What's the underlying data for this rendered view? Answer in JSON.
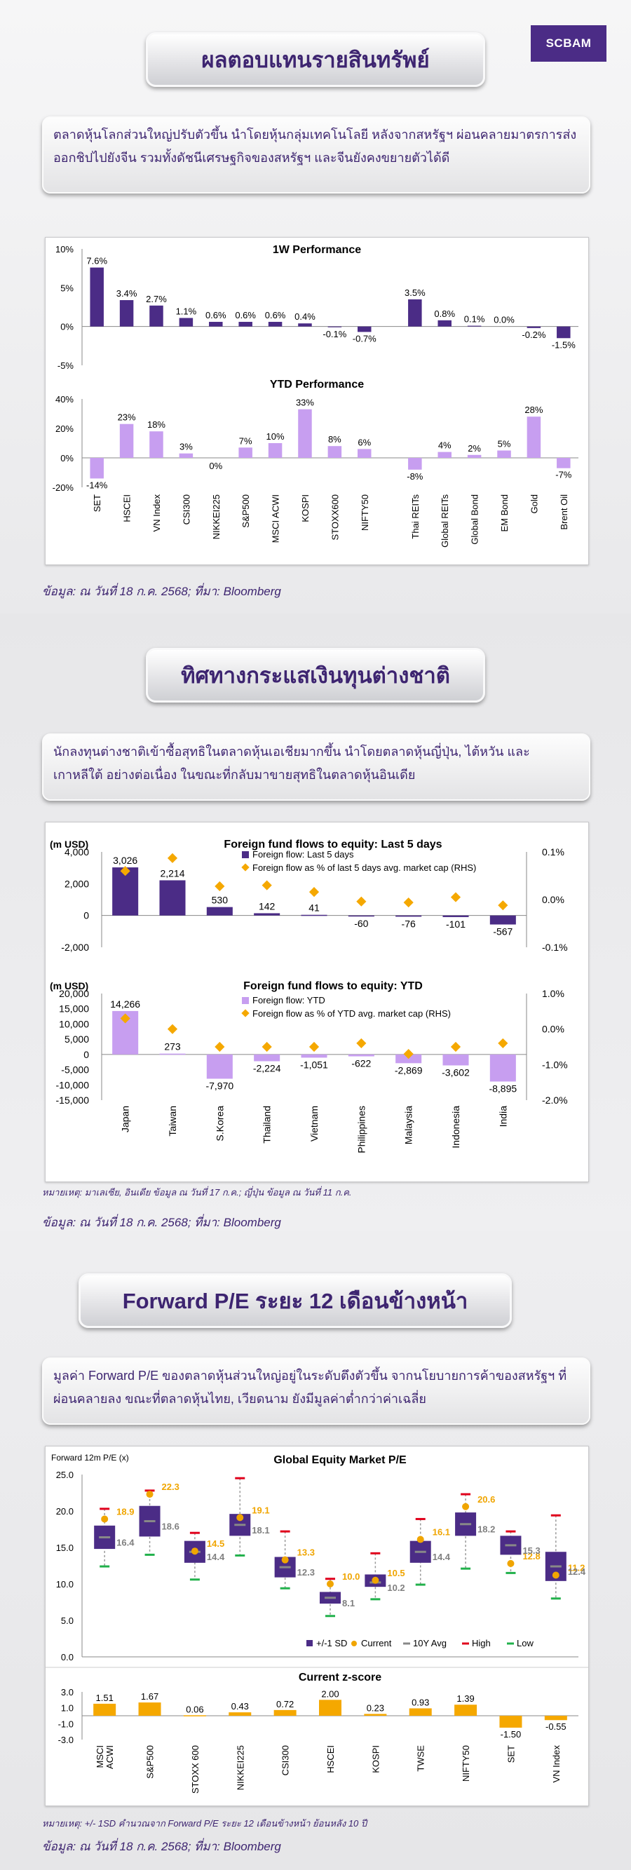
{
  "brand": {
    "logo_text": "SCBAM"
  },
  "section1": {
    "title": "ผลตอบแทนรายสินทรัพย์",
    "description": "ตลาดหุ้นโลกส่วนใหญ่ปรับตัวขึ้น นำโดยหุ้นกลุ่มเทคโนโลยี หลังจากสหรัฐฯ ผ่อนคลายมาตรการส่งออกชิปไปยังจีน รวมทั้งดัชนีเศรษฐกิจของสหรัฐฯ และจีนยังคงขยายตัวได้ดี",
    "source": "ข้อมูล: ณ วันที่ 18 ก.ค. 2568; ที่มา: Bloomberg"
  },
  "section2": {
    "title": "ทิศทางกระแสเงินทุนต่างชาติ",
    "description": "นักลงทุนต่างชาติเข้าซื้อสุทธิในตลาดหุ้นเอเชียมากขึ้น นำโดยตลาดหุ้นญี่ปุ่น, ไต้หวัน และเกาหลีใต้ อย่างต่อเนื่อง ในขณะที่กลับมาขายสุทธิในตลาดหุ้นอินเดีย",
    "footnote": "หมายเหตุ: มาเลเซีย, อินเดีย ข้อมูล ณ วันที่ 17 ก.ค.; ญี่ปุ่น ข้อมูล ณ วันที่ 11 ก.ค.",
    "source": "ข้อมูล: ณ วันที่ 18 ก.ค. 2568; ที่มา: Bloomberg"
  },
  "section3": {
    "title": "Forward P/E ระยะ 12 เดือนข้างหน้า",
    "description": "มูลค่า Forward P/E ของตลาดหุ้นส่วนใหญ่อยู่ในระดับตึงตัวขึ้น จากนโยบายการค้าของสหรัฐฯ ที่ผ่อนคลายลง ขณะที่ตลาดหุ้นไทย, เวียดนาม ยังมีมูลค่าต่ำกว่าค่าเฉลี่ย",
    "footnote": "หมายเหตุ: +/- 1SD คำนวณจาก Forward P/E ระยะ 12 เดือนข้างหน้า ย้อนหลัง 10 ปี",
    "source": "ข้อมูล: ณ วันที่ 18 ก.ค. 2568; ที่มา: Bloomberg"
  },
  "colors": {
    "purple_dark": "#4b2c86",
    "purple_light": "#c79ef0",
    "orange": "#f5a800",
    "gold": "#f0a500",
    "red": "#e0001b",
    "green": "#21b14b",
    "gray": "#888888"
  },
  "chart_data": [
    {
      "type": "bar",
      "title": "1W Performance",
      "categories": [
        "SET",
        "HSCEI",
        "VN Index",
        "CSI300",
        "NIKKEI225",
        "S&P500",
        "MSCI ACWI",
        "KOSPI",
        "STOXX600",
        "NIFTY50",
        "Thai REITs",
        "Global REITs",
        "Global Bond",
        "EM Bond",
        "Gold",
        "Brent Oil"
      ],
      "values": [
        7.6,
        3.4,
        2.7,
        1.1,
        0.6,
        0.6,
        0.6,
        0.4,
        -0.1,
        -0.7,
        3.5,
        0.8,
        0.1,
        0.0,
        -0.2,
        -1.5
      ],
      "labels": [
        "7.6%",
        "3.4%",
        "2.7%",
        "1.1%",
        "0.6%",
        "0.6%",
        "0.6%",
        "0.4%",
        "-0.1%",
        "-0.7%",
        "3.5%",
        "0.8%",
        "0.1%",
        "0.0%",
        "-0.2%",
        "-1.5%"
      ],
      "ylim": [
        -5,
        10
      ],
      "yticks": [
        "-5%",
        "0%",
        "5%",
        "10%"
      ],
      "bar_gaps_after": [
        9
      ]
    },
    {
      "type": "bar",
      "title": "YTD Performance",
      "categories": [
        "SET",
        "HSCEI",
        "VN Index",
        "CSI300",
        "NIKKEI225",
        "S&P500",
        "MSCI ACWI",
        "KOSPI",
        "STOXX600",
        "NIFTY50",
        "Thai REITs",
        "Global REITs",
        "Global Bond",
        "EM Bond",
        "Gold",
        "Brent Oil"
      ],
      "values": [
        -14,
        23,
        18,
        3,
        0,
        7,
        10,
        33,
        8,
        6,
        -8,
        4,
        2,
        5,
        28,
        -7
      ],
      "labels": [
        "-14%",
        "23%",
        "18%",
        "3%",
        "0%",
        "7%",
        "10%",
        "33%",
        "8%",
        "6%",
        "-8%",
        "4%",
        "2%",
        "5%",
        "28%",
        "-7%"
      ],
      "ylim": [
        -20,
        40
      ],
      "yticks": [
        "-20%",
        "0%",
        "20%",
        "40%"
      ]
    },
    {
      "type": "bar",
      "title": "Foreign fund flows to equity: Last 5 days",
      "ylabel": "(m USD)",
      "categories": [
        "Japan",
        "Taiwan",
        "S.Korea",
        "Thailand",
        "Vietnam",
        "Philippines",
        "Malaysia",
        "Indonesia",
        "India"
      ],
      "series": [
        {
          "name": "Foreign flow: Last 5 days",
          "values": [
            3026,
            2214,
            530,
            142,
            41,
            -60,
            -76,
            -101,
            -567
          ],
          "labels": [
            "3,026",
            "2,214",
            "530",
            "142",
            "41",
            "-60",
            "-76",
            "-101",
            "-567"
          ]
        },
        {
          "name": "Foreign flow as % of last 5 days avg. market cap (RHS)",
          "values": [
            0.06,
            0.087,
            0.028,
            0.03,
            0.016,
            -0.004,
            -0.006,
            0.005,
            -0.012
          ]
        }
      ],
      "ylim": [
        -2000,
        4000
      ],
      "yticks": [
        "-2,000",
        "0",
        "2,000",
        "4,000"
      ],
      "y2lim": [
        -0.1,
        0.1
      ],
      "y2ticks": [
        "-0.1%",
        "0.0%",
        "0.1%"
      ]
    },
    {
      "type": "bar",
      "title": "Foreign fund flows to equity: YTD",
      "ylabel": "(m USD)",
      "categories": [
        "Japan",
        "Taiwan",
        "S.Korea",
        "Thailand",
        "Vietnam",
        "Philippines",
        "Malaysia",
        "Indonesia",
        "India"
      ],
      "series": [
        {
          "name": "Foreign flow: YTD",
          "values": [
            14266,
            273,
            -7970,
            -2224,
            -1051,
            -622,
            -2869,
            -3602,
            -8895
          ],
          "labels": [
            "14,266",
            "273",
            "-7,970",
            "-2,224",
            "-1,051",
            "-622",
            "-2,869",
            "-3,602",
            "-8,895"
          ]
        },
        {
          "name": "Foreign flow as % of YTD avg. market cap (RHS)",
          "values": [
            0.3,
            0.0,
            -0.5,
            -0.5,
            -0.5,
            -0.4,
            -0.7,
            -0.5,
            -0.4
          ]
        }
      ],
      "ylim": [
        -15000,
        20000
      ],
      "yticks": [
        "-15,000",
        "-10,000",
        "-5,000",
        "0",
        "5,000",
        "10,000",
        "15,000",
        "20,000"
      ],
      "y2lim": [
        -2.0,
        1.0
      ],
      "y2ticks": [
        "-2.0%",
        "-1.0%",
        "0.0%",
        "1.0%"
      ]
    },
    {
      "type": "box",
      "title": "Global Equity Market P/E",
      "ylabel": "Forward 12m P/E (x)",
      "categories": [
        "MSCI ACWI",
        "S&P500",
        "STOXX 600",
        "NIKKEI225",
        "CSI300",
        "HSCEI",
        "KOSPI",
        "TWSE",
        "NIFTY50",
        "SET",
        "VN Index"
      ],
      "sd_low": [
        14.8,
        16.5,
        12.9,
        16.6,
        10.9,
        7.3,
        9.6,
        12.9,
        16.6,
        14.0,
        10.4
      ],
      "sd_high": [
        18.0,
        20.7,
        15.9,
        19.6,
        13.7,
        8.9,
        11.3,
        15.9,
        19.8,
        16.6,
        14.4
      ],
      "current": [
        18.9,
        22.3,
        14.5,
        19.1,
        13.3,
        10.0,
        10.5,
        16.1,
        20.6,
        12.8,
        11.2
      ],
      "avg_10y": [
        16.4,
        18.6,
        14.4,
        18.1,
        12.3,
        8.1,
        10.2,
        14.4,
        18.2,
        15.3,
        12.4
      ],
      "high": [
        20.3,
        22.8,
        17.0,
        24.5,
        17.2,
        10.7,
        14.2,
        18.9,
        22.3,
        17.2,
        19.4
      ],
      "low": [
        12.4,
        14.0,
        10.6,
        13.9,
        9.4,
        5.6,
        7.9,
        9.9,
        12.1,
        11.5,
        8.0
      ],
      "current_labels": [
        "18.9",
        "22.3",
        "14.5",
        "19.1",
        "13.3",
        "10.0",
        "10.5",
        "16.1",
        "20.6",
        "12.8",
        "11.2"
      ],
      "avg_labels": [
        "16.4",
        "18.6",
        "14.4",
        "18.1",
        "12.3",
        "8.1",
        "10.2",
        "14.4",
        "18.2",
        "15.3",
        "12.4"
      ],
      "ylim": [
        0,
        25
      ],
      "yticks": [
        "0.0",
        "5.0",
        "10.0",
        "15.0",
        "20.0",
        "25.0"
      ],
      "legend": [
        "+/-1 SD",
        "Current",
        "10Y Avg",
        "High",
        "Low"
      ]
    },
    {
      "type": "bar",
      "title": "Current z-score",
      "categories": [
        "MSCI ACWI",
        "S&P500",
        "STOXX 600",
        "NIKKEI225",
        "CSI300",
        "HSCEI",
        "KOSPI",
        "TWSE",
        "NIFTY50",
        "SET",
        "VN Index"
      ],
      "values": [
        1.51,
        1.67,
        0.06,
        0.43,
        0.72,
        2.0,
        0.23,
        0.93,
        1.39,
        -1.5,
        -0.55
      ],
      "labels": [
        "1.51",
        "1.67",
        "0.06",
        "0.43",
        "0.72",
        "2.00",
        "0.23",
        "0.93",
        "1.39",
        "-1.50",
        "-0.55"
      ],
      "ylim": [
        -3,
        3
      ],
      "yticks": [
        "-3.0",
        "-1.0",
        "1.0",
        "3.0"
      ]
    }
  ]
}
